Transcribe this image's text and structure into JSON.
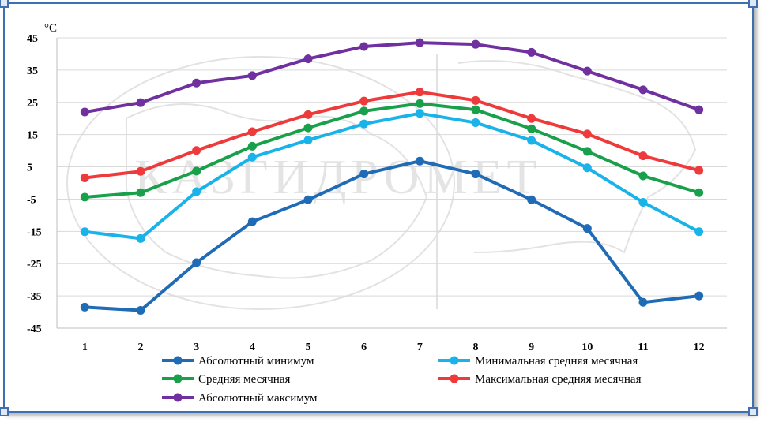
{
  "chart_data": {
    "type": "line",
    "unit_label": "°C",
    "categories": [
      "1",
      "2",
      "3",
      "4",
      "5",
      "6",
      "7",
      "8",
      "9",
      "10",
      "11",
      "12"
    ],
    "yticks": [
      "45",
      "35",
      "25",
      "15",
      "5",
      "-5",
      "-15",
      "-25",
      "-35",
      "-45"
    ],
    "ylim": [
      -45,
      45
    ],
    "grid": "horizontal",
    "legend_position": "bottom",
    "watermark_text": "КАЗГИДРОМЕТ",
    "series": [
      {
        "name": "Абсолютный минимум",
        "color": "#1f6bb5",
        "values": [
          -38.5,
          -39.5,
          -24.7,
          -12,
          -5.2,
          2.8,
          6.8,
          2.8,
          -5.2,
          -14.1,
          -37,
          -35
        ]
      },
      {
        "name": "Минимальная средняя месячная",
        "color": "#19b3ea",
        "values": [
          -15.1,
          -17.2,
          -2.7,
          8,
          13.3,
          18.3,
          21.6,
          18.7,
          13.2,
          4.7,
          -6,
          -15.1
        ]
      },
      {
        "name": "Средняя месячная",
        "color": "#18a04a",
        "values": [
          -4.4,
          -3,
          3.7,
          11.4,
          17.1,
          22.3,
          24.6,
          22.7,
          16.8,
          9.8,
          2.2,
          -3
        ]
      },
      {
        "name": "Максимальная средняя месячная",
        "color": "#ee3a3a",
        "values": [
          1.6,
          3.6,
          10.1,
          15.9,
          21.2,
          25.4,
          28.2,
          25.6,
          20,
          15.2,
          8.4,
          3.9
        ]
      },
      {
        "name": "Абсолютный максимум",
        "color": "#7030a0",
        "values": [
          22,
          24.9,
          31,
          33.3,
          38.5,
          42.3,
          43.5,
          43,
          40.5,
          34.7,
          28.9,
          22.7
        ]
      }
    ]
  }
}
